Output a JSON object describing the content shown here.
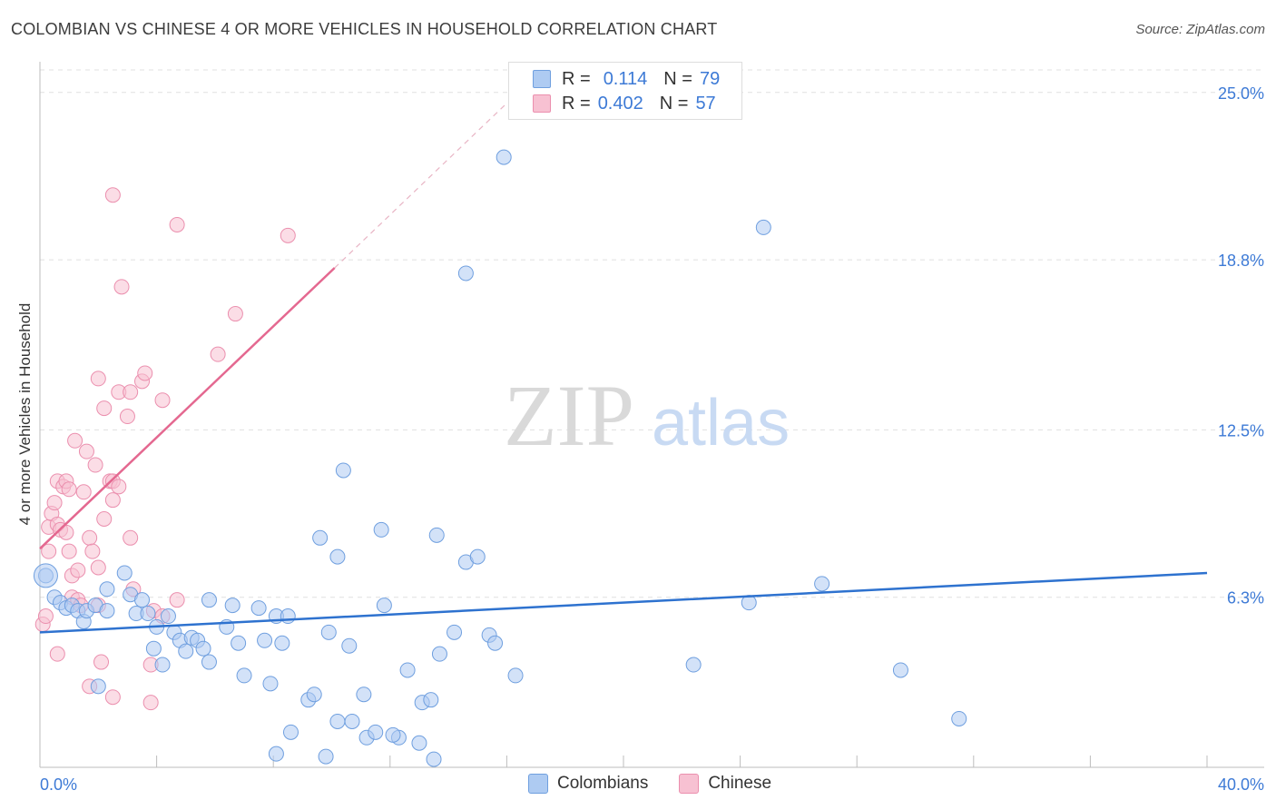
{
  "title": "COLOMBIAN VS CHINESE 4 OR MORE VEHICLES IN HOUSEHOLD CORRELATION CHART",
  "source": "Source: ZipAtlas.com",
  "watermark": {
    "zip": "ZIP",
    "atlas": "atlas"
  },
  "legend": {
    "rows": [
      {
        "r_label": "R =",
        "r_value": "0.114",
        "n_label": "N =",
        "n_value": "79"
      },
      {
        "r_label": "R =",
        "r_value": "0.402",
        "n_label": "N =",
        "n_value": "57"
      }
    ]
  },
  "bottom_legend": {
    "colombians": "Colombians",
    "chinese": "Chinese"
  },
  "colors": {
    "colombian_fill": "#aecbf2",
    "colombian_stroke": "#6f9fdf",
    "colombian_line": "#2e72cf",
    "chinese_fill": "#f7c1d2",
    "chinese_stroke": "#eb8fae",
    "chinese_line": "#e46890",
    "grid": "#e0e0e0",
    "tick_text": "#3d7ad6"
  },
  "chart_data": {
    "type": "scatter",
    "title": "COLOMBIAN VS CHINESE 4 OR MORE VEHICLES IN HOUSEHOLD CORRELATION CHART",
    "xlabel": "",
    "ylabel": "4 or more Vehicles in Household",
    "xlim": [
      0,
      40
    ],
    "ylim": [
      0,
      25.8
    ],
    "x_tick_labels": [
      "0.0%",
      "40.0%"
    ],
    "y_ticks": [
      6.3,
      12.5,
      18.8,
      25.0
    ],
    "y_tick_labels": [
      "6.3%",
      "12.5%",
      "18.8%",
      "25.0%"
    ],
    "grid": true,
    "series": [
      {
        "name": "Colombians",
        "R": 0.114,
        "N": 79,
        "trend": {
          "x0": 0,
          "y0": 5.0,
          "x1": 40,
          "y1": 7.2
        },
        "points": [
          [
            0.2,
            7.1
          ],
          [
            0.5,
            6.3
          ],
          [
            0.7,
            6.1
          ],
          [
            0.9,
            5.9
          ],
          [
            1.1,
            6.0
          ],
          [
            1.3,
            5.8
          ],
          [
            1.5,
            5.4
          ],
          [
            1.6,
            5.8
          ],
          [
            1.9,
            6.0
          ],
          [
            2.3,
            6.6
          ],
          [
            2.3,
            5.8
          ],
          [
            2.0,
            3.0
          ],
          [
            2.9,
            7.2
          ],
          [
            3.1,
            6.4
          ],
          [
            3.3,
            5.7
          ],
          [
            3.5,
            6.2
          ],
          [
            3.7,
            5.7
          ],
          [
            3.9,
            4.4
          ],
          [
            4.0,
            5.2
          ],
          [
            4.2,
            3.8
          ],
          [
            4.4,
            5.6
          ],
          [
            4.6,
            5.0
          ],
          [
            4.8,
            4.7
          ],
          [
            5.0,
            4.3
          ],
          [
            5.2,
            4.8
          ],
          [
            5.4,
            4.7
          ],
          [
            5.6,
            4.4
          ],
          [
            5.8,
            3.9
          ],
          [
            5.8,
            6.2
          ],
          [
            6.4,
            5.2
          ],
          [
            6.6,
            6.0
          ],
          [
            6.8,
            4.6
          ],
          [
            7.0,
            3.4
          ],
          [
            7.5,
            5.9
          ],
          [
            7.7,
            4.7
          ],
          [
            7.9,
            3.1
          ],
          [
            8.1,
            5.6
          ],
          [
            8.3,
            4.6
          ],
          [
            8.5,
            5.6
          ],
          [
            8.6,
            1.3
          ],
          [
            9.2,
            2.5
          ],
          [
            9.4,
            2.7
          ],
          [
            9.6,
            8.5
          ],
          [
            9.9,
            5.0
          ],
          [
            10.2,
            7.8
          ],
          [
            10.2,
            1.7
          ],
          [
            10.4,
            11.0
          ],
          [
            10.6,
            4.5
          ],
          [
            10.7,
            1.7
          ],
          [
            11.1,
            2.7
          ],
          [
            11.2,
            1.1
          ],
          [
            11.5,
            1.3
          ],
          [
            11.7,
            8.8
          ],
          [
            11.8,
            6.0
          ],
          [
            12.3,
            1.1
          ],
          [
            12.1,
            1.2
          ],
          [
            12.6,
            3.6
          ],
          [
            13.0,
            0.9
          ],
          [
            13.1,
            2.4
          ],
          [
            13.4,
            2.5
          ],
          [
            13.6,
            8.6
          ],
          [
            13.7,
            4.2
          ],
          [
            14.2,
            5.0
          ],
          [
            14.6,
            7.6
          ],
          [
            14.6,
            18.3
          ],
          [
            15.0,
            7.8
          ],
          [
            15.4,
            4.9
          ],
          [
            15.6,
            4.6
          ],
          [
            16.3,
            3.4
          ],
          [
            15.9,
            22.6
          ],
          [
            22.4,
            3.8
          ],
          [
            24.3,
            6.1
          ],
          [
            24.8,
            20.0
          ],
          [
            26.8,
            6.8
          ],
          [
            29.5,
            3.6
          ],
          [
            31.5,
            1.8
          ],
          [
            8.1,
            0.5
          ],
          [
            9.8,
            0.4
          ],
          [
            13.5,
            0.3
          ]
        ]
      },
      {
        "name": "Chinese",
        "R": 0.402,
        "N": 57,
        "trend": {
          "x0": 0,
          "y0": 8.1,
          "x1": 10.1,
          "y1": 18.5
        },
        "trend_dashed_to": {
          "x": 16.0,
          "y": 24.6
        },
        "points": [
          [
            0.1,
            5.3
          ],
          [
            0.2,
            5.6
          ],
          [
            0.3,
            8.9
          ],
          [
            0.3,
            8.0
          ],
          [
            0.4,
            9.4
          ],
          [
            0.5,
            9.8
          ],
          [
            0.6,
            9.0
          ],
          [
            0.6,
            10.6
          ],
          [
            0.6,
            4.2
          ],
          [
            0.7,
            8.8
          ],
          [
            0.8,
            10.4
          ],
          [
            0.9,
            10.6
          ],
          [
            0.9,
            8.7
          ],
          [
            1.0,
            10.3
          ],
          [
            1.1,
            7.1
          ],
          [
            1.1,
            6.3
          ],
          [
            1.2,
            12.1
          ],
          [
            1.3,
            7.3
          ],
          [
            1.3,
            6.2
          ],
          [
            1.4,
            6.0
          ],
          [
            1.5,
            10.2
          ],
          [
            1.6,
            11.7
          ],
          [
            1.7,
            8.5
          ],
          [
            1.8,
            8.0
          ],
          [
            1.9,
            11.2
          ],
          [
            2.0,
            7.4
          ],
          [
            2.0,
            6.0
          ],
          [
            2.1,
            3.9
          ],
          [
            2.2,
            13.3
          ],
          [
            2.2,
            9.2
          ],
          [
            2.4,
            10.6
          ],
          [
            2.5,
            9.9
          ],
          [
            2.5,
            10.6
          ],
          [
            2.7,
            13.9
          ],
          [
            2.5,
            2.6
          ],
          [
            2.5,
            21.2
          ],
          [
            2.0,
            14.4
          ],
          [
            2.8,
            17.8
          ],
          [
            3.0,
            13.0
          ],
          [
            3.1,
            8.5
          ],
          [
            3.1,
            13.9
          ],
          [
            3.2,
            6.6
          ],
          [
            3.5,
            14.3
          ],
          [
            3.6,
            14.6
          ],
          [
            3.8,
            2.4
          ],
          [
            3.8,
            3.8
          ],
          [
            3.9,
            5.8
          ],
          [
            4.2,
            13.6
          ],
          [
            4.2,
            5.6
          ],
          [
            4.7,
            20.1
          ],
          [
            4.7,
            6.2
          ],
          [
            6.1,
            15.3
          ],
          [
            6.7,
            16.8
          ],
          [
            8.5,
            19.7
          ],
          [
            1.7,
            3.0
          ],
          [
            1.0,
            8.0
          ],
          [
            2.7,
            10.4
          ]
        ]
      }
    ]
  }
}
